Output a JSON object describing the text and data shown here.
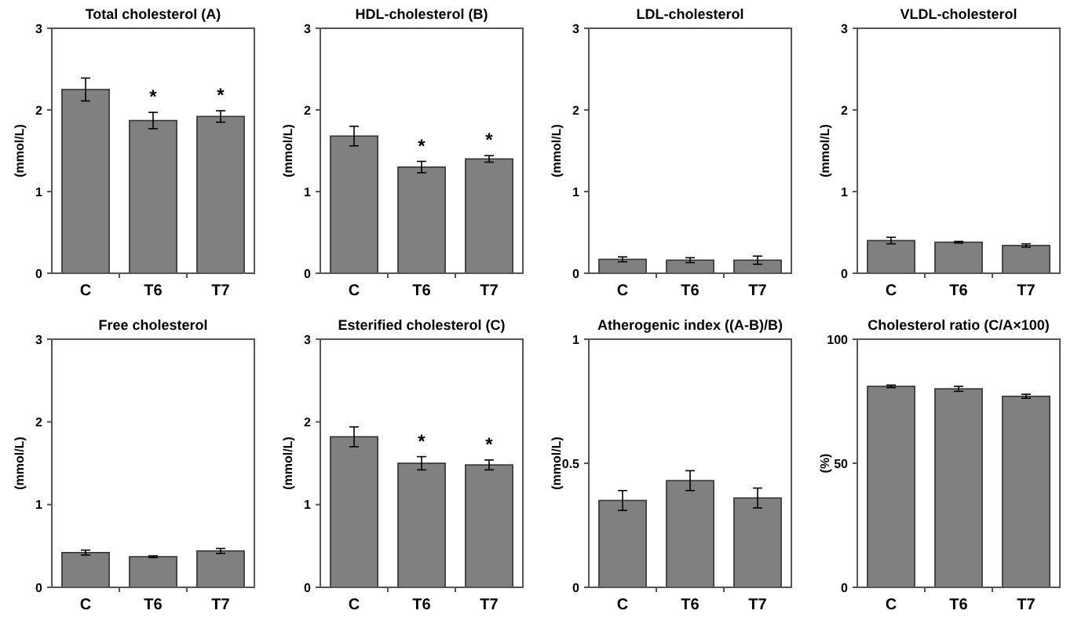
{
  "chart_data": [
    {
      "type": "bar",
      "title": "Total cholesterol (A)",
      "ylabel": "(mmol/L)",
      "categories": [
        "C",
        "T6",
        "T7"
      ],
      "values": [
        2.25,
        1.87,
        1.92
      ],
      "errors": [
        0.14,
        0.1,
        0.07
      ],
      "color": "#808080",
      "ylim": [
        0,
        3
      ],
      "yticks": [
        0,
        1,
        2,
        3
      ],
      "grid": false,
      "annotations": [
        {
          "text": "*",
          "x": "T6",
          "y": 1.87
        },
        {
          "text": "*",
          "x": "T7",
          "y": 1.92
        }
      ]
    },
    {
      "type": "bar",
      "title": "HDL-cholesterol (B)",
      "ylabel": "(mmol/L)",
      "categories": [
        "C",
        "T6",
        "T7"
      ],
      "values": [
        1.68,
        1.3,
        1.4
      ],
      "errors": [
        0.12,
        0.07,
        0.04
      ],
      "color": "#808080",
      "ylim": [
        0,
        3
      ],
      "yticks": [
        0,
        1,
        2,
        3
      ],
      "grid": false,
      "annotations": [
        {
          "text": "*",
          "x": "T6",
          "y": 1.3
        },
        {
          "text": "*",
          "x": "T7",
          "y": 1.4
        }
      ]
    },
    {
      "type": "bar",
      "title": "LDL-cholesterol",
      "ylabel": "(mmol/L)",
      "categories": [
        "C",
        "T6",
        "T7"
      ],
      "values": [
        0.17,
        0.16,
        0.16
      ],
      "errors": [
        0.03,
        0.03,
        0.05
      ],
      "color": "#808080",
      "ylim": [
        0,
        3
      ],
      "yticks": [
        0,
        1,
        2,
        3
      ],
      "grid": false
    },
    {
      "type": "bar",
      "title": "VLDL-cholesterol",
      "ylabel": "(mmol/L)",
      "categories": [
        "C",
        "T6",
        "T7"
      ],
      "values": [
        0.4,
        0.38,
        0.34
      ],
      "errors": [
        0.04,
        0.01,
        0.02
      ],
      "color": "#808080",
      "ylim": [
        0,
        3
      ],
      "yticks": [
        0,
        1,
        2,
        3
      ],
      "grid": false
    },
    {
      "type": "bar",
      "title": "Free cholesterol",
      "ylabel": "(mmol/L)",
      "categories": [
        "C",
        "T6",
        "T7"
      ],
      "values": [
        0.42,
        0.37,
        0.44
      ],
      "errors": [
        0.03,
        0.01,
        0.03
      ],
      "color": "#808080",
      "ylim": [
        0,
        3
      ],
      "yticks": [
        0,
        1,
        2,
        3
      ],
      "grid": false
    },
    {
      "type": "bar",
      "title": "Esterified cholesterol (C)",
      "ylabel": "(mmol/L)",
      "categories": [
        "C",
        "T6",
        "T7"
      ],
      "values": [
        1.82,
        1.5,
        1.48
      ],
      "errors": [
        0.12,
        0.08,
        0.06
      ],
      "color": "#808080",
      "ylim": [
        0,
        3
      ],
      "yticks": [
        0,
        1,
        2,
        3
      ],
      "grid": false,
      "annotations": [
        {
          "text": "*",
          "x": "T6",
          "y": 1.5
        },
        {
          "text": "*",
          "x": "T7",
          "y": 1.48
        }
      ]
    },
    {
      "type": "bar",
      "title": "Atherogenic index ((A-B)/B)",
      "ylabel": "(mmol/L)",
      "categories": [
        "C",
        "T6",
        "T7"
      ],
      "values": [
        0.35,
        0.43,
        0.36
      ],
      "errors": [
        0.04,
        0.04,
        0.04
      ],
      "color": "#808080",
      "ylim": [
        0,
        1
      ],
      "yticks": [
        0,
        0.5,
        1
      ],
      "grid": false
    },
    {
      "type": "bar",
      "title": "Cholesterol ratio (C/A×100)",
      "ylabel": "(%)",
      "categories": [
        "C",
        "T6",
        "T7"
      ],
      "values": [
        81,
        80,
        77
      ],
      "errors": [
        0.5,
        1,
        0.8
      ],
      "color": "#808080",
      "ylim": [
        0,
        100
      ],
      "yticks": [
        0,
        50,
        100
      ],
      "grid": false
    }
  ]
}
